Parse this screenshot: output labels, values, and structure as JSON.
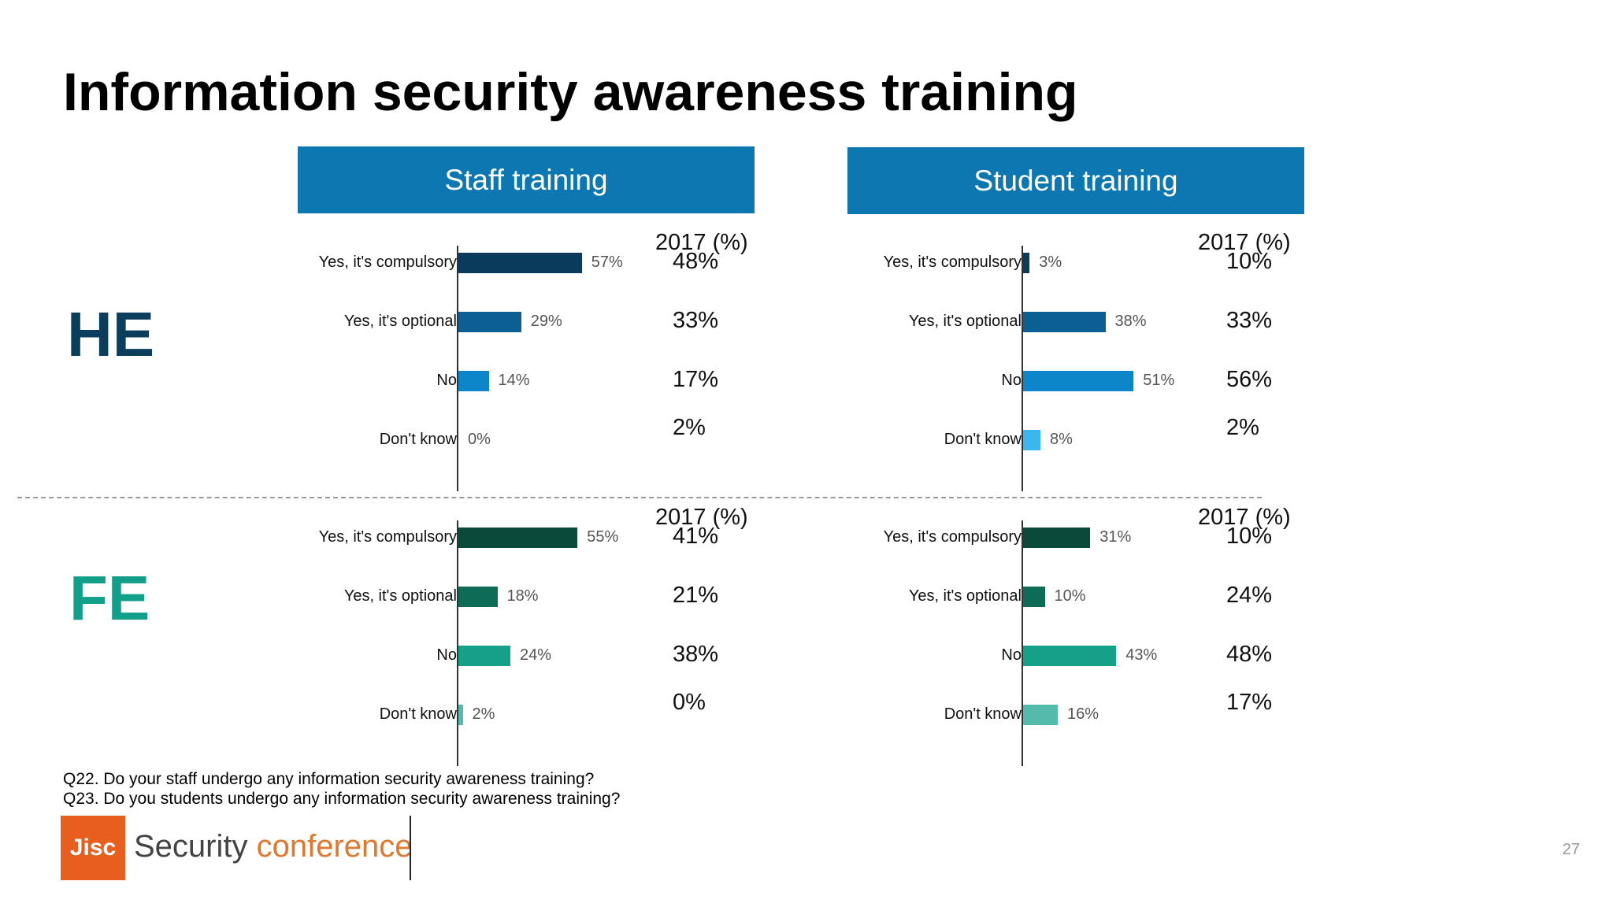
{
  "title": "Information security awareness training",
  "headers": {
    "staff": "Staff training",
    "student": "Student training"
  },
  "sections": {
    "he": "HE",
    "fe": "FE"
  },
  "questions": [
    "Q22. Do your staff undergo any information security awareness training?",
    "Q23. Do you students undergo any information security awareness training?"
  ],
  "logo": {
    "mark": "Jisc",
    "word1": "Security",
    "word2": "conference"
  },
  "page_number": "27",
  "colors": {
    "header_bg": "#0c77b0",
    "he_label": "#0b3d5c",
    "fe_label": "#12a08a",
    "logo_orange": "#e85e1f"
  },
  "chart_data": [
    {
      "type": "bar",
      "panel": "HE staff training",
      "categories": [
        "Yes, it's compulsory",
        "Yes, it's optional",
        "No",
        "Don't know"
      ],
      "values": [
        57,
        29,
        14,
        0
      ],
      "value_labels": [
        "57%",
        "29%",
        "14%",
        "0%"
      ],
      "colors": [
        "#0a3a5c",
        "#0c5f92",
        "#0d86c9",
        "#3bb7ef"
      ],
      "comparison_header": "2017 (%)",
      "comparison_labels": [
        "48%",
        "33%",
        "17%",
        "2%"
      ],
      "xlim": [
        0,
        100
      ]
    },
    {
      "type": "bar",
      "panel": "HE student training",
      "categories": [
        "Yes, it's compulsory",
        "Yes, it's optional",
        "No",
        "Don't know"
      ],
      "values": [
        3,
        38,
        51,
        8
      ],
      "value_labels": [
        "3%",
        "38%",
        "51%",
        "8%"
      ],
      "colors": [
        "#0a3a5c",
        "#0c5f92",
        "#0d86c9",
        "#3bb7ef"
      ],
      "comparison_header": "2017 (%)",
      "comparison_labels": [
        "10%",
        "33%",
        "56%",
        "2%"
      ],
      "xlim": [
        0,
        100
      ]
    },
    {
      "type": "bar",
      "panel": "FE staff training",
      "categories": [
        "Yes, it's compulsory",
        "Yes, it's optional",
        "No",
        "Don't know"
      ],
      "values": [
        55,
        18,
        24,
        2
      ],
      "value_labels": [
        "55%",
        "18%",
        "24%",
        "2%"
      ],
      "colors": [
        "#0a4a3a",
        "#0e6b55",
        "#15a08a",
        "#54bbac"
      ],
      "comparison_header": "2017 (%)",
      "comparison_labels": [
        "41%",
        "21%",
        "38%",
        "0%"
      ],
      "xlim": [
        0,
        100
      ]
    },
    {
      "type": "bar",
      "panel": "FE student training",
      "categories": [
        "Yes, it's compulsory",
        "Yes, it's optional",
        "No",
        "Don't know"
      ],
      "values": [
        31,
        10,
        43,
        16
      ],
      "value_labels": [
        "31%",
        "10%",
        "43%",
        "16%"
      ],
      "colors": [
        "#0a4a3a",
        "#0e6b55",
        "#15a08a",
        "#54bbac"
      ],
      "comparison_header": "2017 (%)",
      "comparison_labels": [
        "10%",
        "24%",
        "48%",
        "17%"
      ],
      "xlim": [
        0,
        100
      ]
    }
  ]
}
